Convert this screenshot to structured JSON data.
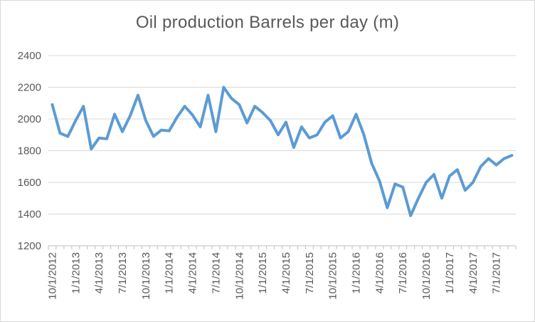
{
  "chart_data": {
    "type": "line",
    "title": "Oil production Barrels per day (m)",
    "xlabel": "",
    "ylabel": "",
    "ylim": [
      1200,
      2400
    ],
    "yticks": [
      1200,
      1400,
      1600,
      1800,
      2000,
      2200,
      2400
    ],
    "grid": true,
    "legend": "none",
    "line_color": "#5b9bd5",
    "grid_color": "#d9d9d9",
    "x_tick_labels": [
      "10/1/2012",
      "1/1/2013",
      "4/1/2013",
      "7/1/2013",
      "10/1/2013",
      "1/1/2014",
      "4/1/2014",
      "7/1/2014",
      "10/1/2014",
      "1/1/2015",
      "4/1/2015",
      "7/1/2015",
      "10/1/2015",
      "1/1/2016",
      "4/1/2016",
      "7/1/2016",
      "10/1/2016",
      "1/1/2017",
      "4/1/2017",
      "7/1/2017"
    ],
    "x": [
      "2012-10",
      "2012-11",
      "2012-12",
      "2013-01",
      "2013-02",
      "2013-03",
      "2013-04",
      "2013-05",
      "2013-06",
      "2013-07",
      "2013-08",
      "2013-09",
      "2013-10",
      "2013-11",
      "2013-12",
      "2014-01",
      "2014-02",
      "2014-03",
      "2014-04",
      "2014-05",
      "2014-06",
      "2014-07",
      "2014-08",
      "2014-09",
      "2014-10",
      "2014-11",
      "2014-12",
      "2015-01",
      "2015-02",
      "2015-03",
      "2015-04",
      "2015-05",
      "2015-06",
      "2015-07",
      "2015-08",
      "2015-09",
      "2015-10",
      "2015-11",
      "2015-12",
      "2016-01",
      "2016-02",
      "2016-03",
      "2016-04",
      "2016-05",
      "2016-06",
      "2016-07",
      "2016-08",
      "2016-09",
      "2016-10",
      "2016-11",
      "2016-12",
      "2017-01",
      "2017-02",
      "2017-03",
      "2017-04",
      "2017-05",
      "2017-06",
      "2017-07",
      "2017-08",
      "2017-09"
    ],
    "values": [
      2090,
      1910,
      1890,
      1990,
      2080,
      1810,
      1880,
      1875,
      2030,
      1920,
      2020,
      2150,
      1990,
      1890,
      1930,
      1925,
      2010,
      2080,
      2025,
      1950,
      2150,
      1920,
      2200,
      2130,
      2090,
      1975,
      2080,
      2040,
      1990,
      1900,
      1980,
      1820,
      1950,
      1880,
      1900,
      1980,
      2020,
      1880,
      1920,
      2030,
      1900,
      1720,
      1610,
      1440,
      1590,
      1570,
      1390,
      1500,
      1600,
      1650,
      1500,
      1640,
      1680,
      1550,
      1600,
      1700,
      1750,
      1710,
      1750,
      1770
    ]
  }
}
